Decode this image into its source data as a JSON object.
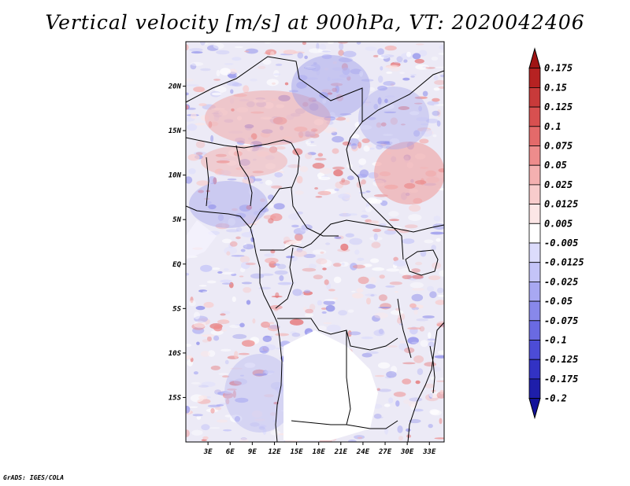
{
  "title": "Vertical velocity [m/s] at 900hPa, VT: 2020042406",
  "credit": "GrADS: IGES/COLA",
  "map": {
    "lon_range": [
      0,
      35
    ],
    "lat_range": [
      -20,
      25
    ],
    "lat_ticks": [
      {
        "label": "20N",
        "value": 20
      },
      {
        "label": "15N",
        "value": 15
      },
      {
        "label": "10N",
        "value": 10
      },
      {
        "label": "5N",
        "value": 5
      },
      {
        "label": "EQ",
        "value": 0
      },
      {
        "label": "5S",
        "value": -5
      },
      {
        "label": "10S",
        "value": -10
      },
      {
        "label": "15S",
        "value": -15
      }
    ],
    "lon_ticks": [
      {
        "label": "3E",
        "value": 3
      },
      {
        "label": "6E",
        "value": 6
      },
      {
        "label": "9E",
        "value": 9
      },
      {
        "label": "12E",
        "value": 12
      },
      {
        "label": "15E",
        "value": 15
      },
      {
        "label": "18E",
        "value": 18
      },
      {
        "label": "21E",
        "value": 21
      },
      {
        "label": "24E",
        "value": 24
      },
      {
        "label": "27E",
        "value": 27
      },
      {
        "label": "30E",
        "value": 30
      },
      {
        "label": "33E",
        "value": 33
      }
    ]
  },
  "colorbar": {
    "labels": [
      "0.175",
      "0.15",
      "0.125",
      "0.1",
      "0.075",
      "0.05",
      "0.025",
      "0.0125",
      "0.005",
      "-0.005",
      "-0.0125",
      "-0.025",
      "-0.05",
      "-0.075",
      "-0.1",
      "-0.125",
      "-0.175",
      "-0.2"
    ],
    "colors": [
      "#a01414",
      "#b62222",
      "#c83a3a",
      "#d85050",
      "#e46a6a",
      "#ee8c8c",
      "#f4b0b0",
      "#f8cccc",
      "#fce6e6",
      "#ffffff",
      "#dcdcfc",
      "#c4c4f8",
      "#a8a8f2",
      "#8888ea",
      "#6a6ae2",
      "#4c4cd6",
      "#3232c4",
      "#1e1eaa",
      "#12129a"
    ]
  }
}
